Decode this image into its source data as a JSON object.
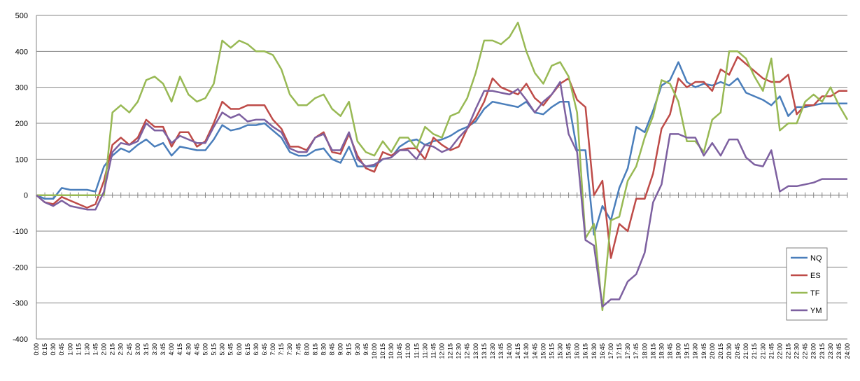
{
  "chart_data": {
    "type": "line",
    "title": "",
    "xlabel": "",
    "ylabel": "",
    "ylim": [
      -400,
      500
    ],
    "y_ticks": [
      -400,
      -300,
      -200,
      -100,
      0,
      100,
      200,
      300,
      400,
      500
    ],
    "grid": "horizontal",
    "legend_position": "right",
    "x": [
      "0:00",
      "0:15",
      "0:30",
      "0:45",
      "1:00",
      "1:15",
      "1:30",
      "1:45",
      "2:00",
      "2:15",
      "2:30",
      "2:45",
      "3:00",
      "3:15",
      "3:30",
      "3:45",
      "4:00",
      "4:15",
      "4:30",
      "4:45",
      "5:00",
      "5:15",
      "5:30",
      "5:45",
      "6:00",
      "6:15",
      "6:30",
      "6:45",
      "7:00",
      "7:15",
      "7:30",
      "7:45",
      "8:00",
      "8:15",
      "8:30",
      "8:45",
      "9:00",
      "9:15",
      "9:30",
      "9:45",
      "10:00",
      "10:15",
      "10:30",
      "10:45",
      "11:00",
      "11:15",
      "11:30",
      "11:45",
      "12:00",
      "12:15",
      "12:30",
      "12:45",
      "13:00",
      "13:15",
      "13:30",
      "13:45",
      "14:00",
      "14:15",
      "14:30",
      "14:45",
      "15:00",
      "15:15",
      "15:30",
      "15:45",
      "16:00",
      "16:15",
      "16:30",
      "16:45",
      "17:00",
      "17:15",
      "17:30",
      "17:45",
      "18:00",
      "18:15",
      "18:30",
      "18:45",
      "19:00",
      "19:15",
      "19:30",
      "19:45",
      "20:00",
      "20:15",
      "20:30",
      "20:45",
      "21:00",
      "21:15",
      "21:30",
      "21:45",
      "22:00",
      "22:15",
      "22:30",
      "22:45",
      "23:00",
      "23:15",
      "23:30",
      "23:45",
      "24:00"
    ],
    "series": [
      {
        "name": "NQ",
        "color": "#4A7EBB",
        "values": [
          0,
          -10,
          -10,
          20,
          15,
          15,
          15,
          10,
          80,
          110,
          130,
          120,
          140,
          155,
          135,
          145,
          110,
          135,
          130,
          125,
          125,
          155,
          195,
          180,
          185,
          195,
          195,
          200,
          180,
          160,
          120,
          110,
          110,
          125,
          130,
          100,
          90,
          135,
          80,
          80,
          80,
          100,
          105,
          135,
          150,
          155,
          140,
          150,
          155,
          165,
          180,
          190,
          205,
          240,
          260,
          255,
          250,
          245,
          260,
          230,
          225,
          245,
          260,
          260,
          125,
          125,
          -110,
          -30,
          -70,
          20,
          75,
          190,
          175,
          235,
          305,
          320,
          370,
          315,
          300,
          310,
          305,
          315,
          305,
          325,
          285,
          275,
          265,
          250,
          275,
          220,
          245,
          245,
          250,
          255,
          255,
          255,
          255
        ]
      },
      {
        "name": "ES",
        "color": "#BE4B48",
        "values": [
          0,
          -20,
          -25,
          -5,
          -15,
          -25,
          -35,
          -25,
          40,
          140,
          160,
          140,
          160,
          210,
          190,
          190,
          135,
          175,
          175,
          135,
          150,
          200,
          260,
          240,
          240,
          250,
          250,
          250,
          210,
          185,
          135,
          135,
          125,
          160,
          175,
          120,
          115,
          170,
          110,
          75,
          65,
          120,
          110,
          125,
          130,
          130,
          100,
          160,
          140,
          125,
          135,
          185,
          215,
          260,
          325,
          300,
          290,
          280,
          310,
          270,
          250,
          280,
          310,
          325,
          265,
          245,
          0,
          40,
          -175,
          -80,
          -100,
          -10,
          -10,
          60,
          185,
          225,
          325,
          300,
          315,
          315,
          290,
          350,
          335,
          385,
          365,
          345,
          325,
          315,
          315,
          335,
          225,
          250,
          250,
          275,
          275,
          290,
          290
        ]
      },
      {
        "name": "TF",
        "color": "#98B954",
        "values": [
          0,
          0,
          0,
          0,
          0,
          0,
          0,
          0,
          0,
          230,
          250,
          230,
          260,
          320,
          330,
          310,
          260,
          330,
          280,
          260,
          270,
          310,
          430,
          410,
          430,
          420,
          400,
          400,
          390,
          350,
          280,
          250,
          250,
          270,
          280,
          240,
          220,
          260,
          150,
          120,
          110,
          150,
          120,
          160,
          160,
          130,
          190,
          170,
          160,
          220,
          230,
          270,
          340,
          430,
          430,
          420,
          440,
          480,
          400,
          340,
          310,
          360,
          370,
          330,
          230,
          -120,
          -80,
          -320,
          -70,
          -60,
          40,
          80,
          160,
          220,
          320,
          310,
          260,
          150,
          150,
          120,
          210,
          230,
          400,
          400,
          380,
          330,
          290,
          380,
          180,
          200,
          200,
          260,
          280,
          260,
          300,
          250,
          210
        ]
      },
      {
        "name": "YM",
        "color": "#7D60A0",
        "values": [
          0,
          -20,
          -30,
          -15,
          -30,
          -35,
          -40,
          -40,
          10,
          120,
          145,
          140,
          150,
          200,
          180,
          180,
          145,
          165,
          155,
          145,
          145,
          190,
          230,
          215,
          225,
          205,
          210,
          210,
          190,
          175,
          130,
          120,
          120,
          160,
          170,
          125,
          125,
          175,
          100,
          80,
          85,
          100,
          105,
          125,
          125,
          100,
          140,
          135,
          120,
          130,
          160,
          185,
          240,
          290,
          290,
          285,
          280,
          295,
          265,
          230,
          260,
          280,
          315,
          170,
          120,
          -125,
          -140,
          -310,
          -290,
          -290,
          -240,
          -220,
          -160,
          -20,
          30,
          170,
          170,
          160,
          160,
          110,
          145,
          110,
          155,
          155,
          105,
          85,
          80,
          125,
          10,
          25,
          25,
          30,
          35,
          45,
          45,
          45,
          45
        ]
      }
    ]
  }
}
